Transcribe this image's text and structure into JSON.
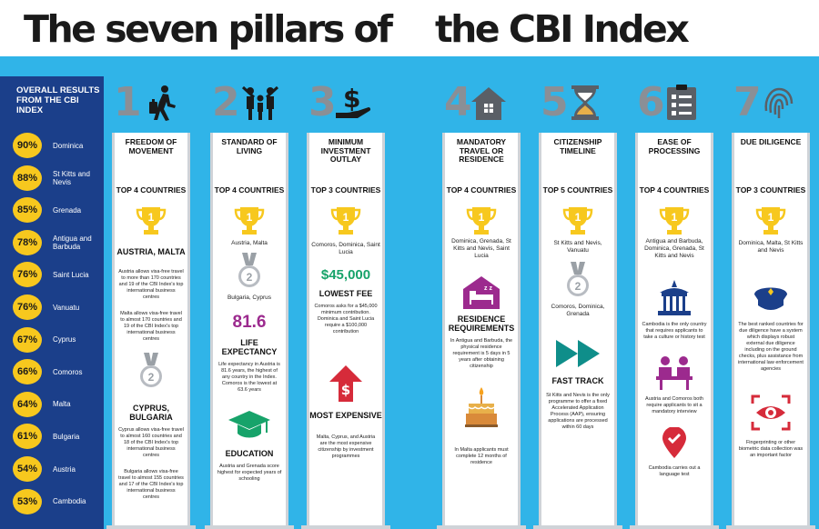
{
  "title": {
    "part1": "The seven pillars of",
    "part2": "the CBI Index"
  },
  "colors": {
    "background": "#30b4e8",
    "sidebar": "#1b3f8a",
    "gold": "#f7c81e",
    "purple": "#9c2a8e",
    "green": "#17a36a",
    "teal": "#0f8e8a",
    "red": "#d62b3a",
    "navy": "#1b3f8a"
  },
  "sidebar": {
    "title": "OVERALL RESULTS FROM THE CBI INDEX",
    "rankings": [
      {
        "pct": "90%",
        "country": "Dominica"
      },
      {
        "pct": "88%",
        "country": "St Kitts and Nevis"
      },
      {
        "pct": "85%",
        "country": "Grenada"
      },
      {
        "pct": "78%",
        "country": "Antigua and Barbuda"
      },
      {
        "pct": "76%",
        "country": "Saint Lucia"
      },
      {
        "pct": "76%",
        "country": "Vanuatu"
      },
      {
        "pct": "67%",
        "country": "Cyprus"
      },
      {
        "pct": "66%",
        "country": "Comoros"
      },
      {
        "pct": "64%",
        "country": "Malta"
      },
      {
        "pct": "61%",
        "country": "Bulgaria"
      },
      {
        "pct": "54%",
        "country": "Austria"
      },
      {
        "pct": "53%",
        "country": "Cambodia"
      }
    ]
  },
  "pillars": [
    {
      "num": "1",
      "icon": "traveler-icon",
      "title": "FREEDOM OF MOVEMENT",
      "top": "TOP 4 COUNTRIES",
      "gold_name": "AUSTRIA, MALTA",
      "gold_text1": "Austria allows visa-free travel to more than 170 countries and 19 of the CBI Index's top international business centres",
      "gold_text2": "Malta allows visa-free travel to almost 170 countries and 19 of the CBI Index's top international business centres",
      "silver_name": "CYPRUS, BULGARIA",
      "silver_text1": "Cyprus allows visa-free travel to almost 160 countries and 18 of the CBI Index's top international business centres",
      "silver_text2": "Bulgaria allows visa-free travel to almost 155 countries and 17 of the CBI Index's top international business centres"
    },
    {
      "num": "2",
      "icon": "family-icon",
      "title": "STANDARD OF LIVING",
      "top": "TOP 4 COUNTRIES",
      "gold_name": "Austria, Malta",
      "silver_name": "Bulgaria, Cyprus",
      "stat": "81.6",
      "stat_label": "LIFE EXPECTANCY",
      "stat_text": "Life expectancy in Austria is 81.6 years, the highest of any country in the Index. Comoros is the lowest at 63.6 years",
      "edu_label": "EDUCATION",
      "edu_text": "Austria and Grenada score highest for expected years of schooling"
    },
    {
      "num": "3",
      "icon": "money-hand-icon",
      "title": "MINIMUM INVESTMENT OUTLAY",
      "top": "TOP 3 COUNTRIES",
      "gold_name": "Comoros, Dominica, Saint Lucia",
      "fee": "$45,000",
      "fee_label": "LOWEST FEE",
      "fee_text": "Comoros asks for a $45,000 minimum contribution. Dominica and Saint Lucia require a $100,000 contribution",
      "exp_label": "MOST EXPENSIVE",
      "exp_text": "Malta, Cyprus, and Austria are the most expensive citizenship by investment programmes"
    },
    {
      "num": "4",
      "icon": "house-icon",
      "title": "MANDATORY TRAVEL OR RESIDENCE",
      "top": "TOP 4 COUNTRIES",
      "gold_name": "Dominica, Grenada, St Kitts and Nevis, Saint Lucia",
      "res_label": "RESIDENCE REQUIREMENTS",
      "res_text": "In Antigua and Barbuda, the physical residence requirement is 5 days in 5 years after obtaining citizenship",
      "malta_text": "In Malta applicants must complete 12 months of residence"
    },
    {
      "num": "5",
      "icon": "hourglass-icon",
      "title": "CITIZENSHIP TIMELINE",
      "top": "TOP 5 COUNTRIES",
      "gold_name": "St Kitts and Nevis, Vanuatu",
      "silver_name": "Comoros, Dominica, Grenada",
      "fast_label": "FAST TRACK",
      "fast_text": "St Kitts and Nevis is the only programme to offer a fixed Accelerated Application Process (AAP), ensuring applications are processed within 60 days"
    },
    {
      "num": "6",
      "icon": "checklist-icon",
      "title": "EASE OF PROCESSING",
      "top": "TOP 4 COUNTRIES",
      "gold_name": "Antigua and Barbuda, Dominica, Grenada, St Kitts and Nevis",
      "cam_text": "Cambodia is the only country that requires applicants to take a culture or history test",
      "int_text": "Austria and Comoros both require applicants to sit a mandatory interview",
      "lang_text": "Cambodia carries out a language test"
    },
    {
      "num": "7",
      "icon": "fingerprint-icon",
      "title": "DUE DILIGENCE",
      "top": "TOP 3 COUNTRIES",
      "gold_name": "Dominica, Malta, St Kitts and Nevis",
      "dd_text": "The best ranked countries for due diligence have a system which displays robust external due diligence including on the ground checks, plus assistance from international law enforcement agencies",
      "bio_text": "Fingerprinting or other biometric data collection was an important factor"
    }
  ]
}
